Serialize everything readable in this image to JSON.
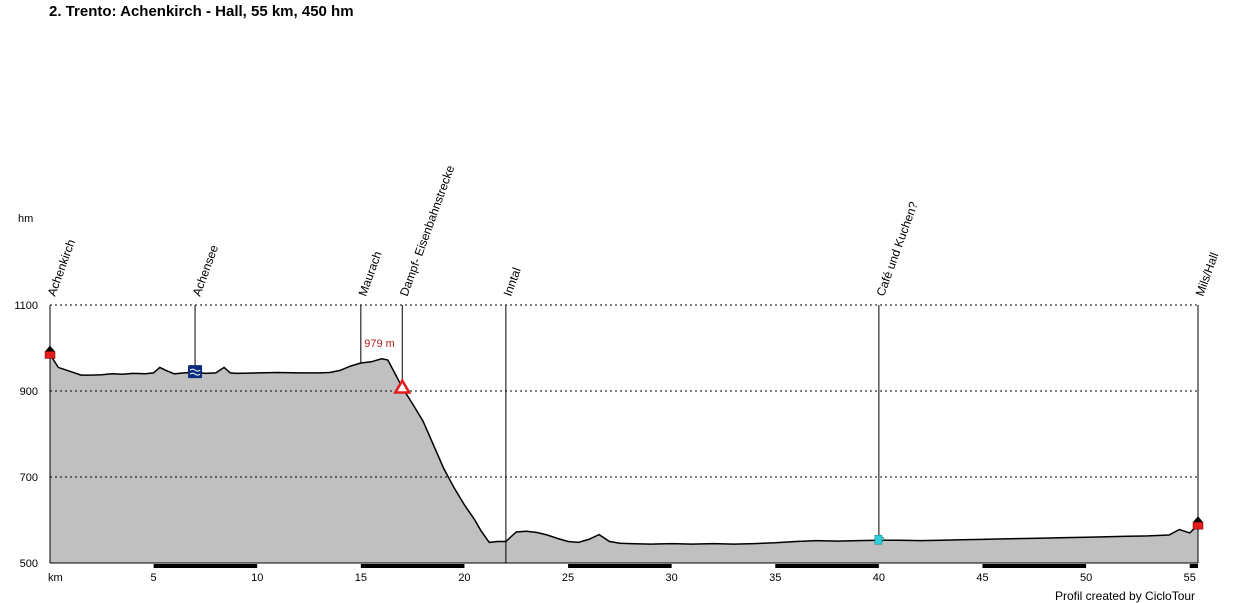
{
  "chart_data": {
    "type": "area",
    "title": "2. Trento: Achenkirch - Hall, 55 km, 450 hm",
    "ylabel": "hm",
    "xlabel": "km",
    "xlim": [
      0,
      55.4
    ],
    "ylim": [
      500,
      1100
    ],
    "y_ticks": [
      500,
      700,
      900,
      1100
    ],
    "x_ticks": [
      5,
      10,
      15,
      20,
      25,
      30,
      35,
      40,
      45,
      50,
      55
    ],
    "grid": "horizontal dotted",
    "profile": [
      [
        0,
        985
      ],
      [
        0.4,
        955
      ],
      [
        1.0,
        945
      ],
      [
        1.5,
        937
      ],
      [
        2.0,
        937
      ],
      [
        2.5,
        938
      ],
      [
        3.0,
        940
      ],
      [
        3.5,
        939
      ],
      [
        4.0,
        941
      ],
      [
        4.6,
        940
      ],
      [
        5.0,
        942
      ],
      [
        5.3,
        955
      ],
      [
        5.6,
        948
      ],
      [
        6.0,
        940
      ],
      [
        6.5,
        942
      ],
      [
        7.0,
        944
      ],
      [
        7.5,
        941
      ],
      [
        8.0,
        942
      ],
      [
        8.4,
        955
      ],
      [
        8.7,
        942
      ],
      [
        9.0,
        941
      ],
      [
        10.0,
        942
      ],
      [
        11.0,
        943
      ],
      [
        12.0,
        942
      ],
      [
        13.0,
        942
      ],
      [
        13.5,
        943
      ],
      [
        14.0,
        948
      ],
      [
        14.5,
        958
      ],
      [
        15.0,
        965
      ],
      [
        15.5,
        968
      ],
      [
        16.0,
        975
      ],
      [
        16.3,
        972
      ],
      [
        16.6,
        945
      ],
      [
        17.0,
        908
      ],
      [
        17.5,
        870
      ],
      [
        18.0,
        830
      ],
      [
        18.5,
        775
      ],
      [
        19.0,
        720
      ],
      [
        19.5,
        675
      ],
      [
        20.0,
        635
      ],
      [
        20.5,
        600
      ],
      [
        20.8,
        575
      ],
      [
        21.2,
        548
      ],
      [
        21.6,
        550
      ],
      [
        22.0,
        550
      ],
      [
        22.5,
        572
      ],
      [
        23.0,
        574
      ],
      [
        23.5,
        571
      ],
      [
        24.0,
        565
      ],
      [
        24.5,
        557
      ],
      [
        25.0,
        550
      ],
      [
        25.5,
        548
      ],
      [
        26.0,
        555
      ],
      [
        26.5,
        566
      ],
      [
        27.0,
        550
      ],
      [
        27.5,
        546
      ],
      [
        28.0,
        545
      ],
      [
        29.0,
        544
      ],
      [
        30.0,
        545
      ],
      [
        31.0,
        544
      ],
      [
        32.0,
        545
      ],
      [
        33.0,
        544
      ],
      [
        34.0,
        545
      ],
      [
        35.0,
        547
      ],
      [
        36.0,
        550
      ],
      [
        37.0,
        552
      ],
      [
        38.0,
        551
      ],
      [
        39.0,
        552
      ],
      [
        40.0,
        553
      ],
      [
        41.0,
        553
      ],
      [
        42.0,
        552
      ],
      [
        43.0,
        553
      ],
      [
        44.0,
        554
      ],
      [
        45.0,
        555
      ],
      [
        46.0,
        556
      ],
      [
        47.0,
        557
      ],
      [
        48.0,
        558
      ],
      [
        49.0,
        559
      ],
      [
        50.0,
        560
      ],
      [
        51.0,
        561
      ],
      [
        52.0,
        562
      ],
      [
        53.0,
        563
      ],
      [
        54.0,
        565
      ],
      [
        54.5,
        578
      ],
      [
        55.0,
        570
      ],
      [
        55.4,
        588
      ]
    ],
    "waypoints": [
      {
        "name": "Achenkirch",
        "km": 0,
        "elev": 985,
        "marker": "home"
      },
      {
        "name": "Achensee",
        "km": 7,
        "elev": 944,
        "marker": "lake"
      },
      {
        "name": "Maurach",
        "km": 15,
        "elev": 965,
        "marker": "none"
      },
      {
        "name": "Dampf- Eisenbahnstrecke",
        "km": 17,
        "elev": 908,
        "marker": "warning"
      },
      {
        "name": "Inntal",
        "km": 22,
        "elev": 550,
        "marker": "none"
      },
      {
        "name": "Café und Kuchen?",
        "km": 40,
        "elev": 553,
        "marker": "cafe"
      },
      {
        "name": "Mils/Hall",
        "km": 55.4,
        "elev": 588,
        "marker": "home"
      }
    ],
    "peak_label": {
      "text": "979 m",
      "km": 16.0,
      "elev": 979
    }
  },
  "colors": {
    "fill": "#c0c0c0",
    "line": "#000000",
    "peak_label": "#b22222",
    "marker_red": "#e31b1b",
    "marker_blue": "#0a2a7a",
    "marker_cyan": "#33ccdd"
  },
  "footer": "Profil created by CicloTour"
}
